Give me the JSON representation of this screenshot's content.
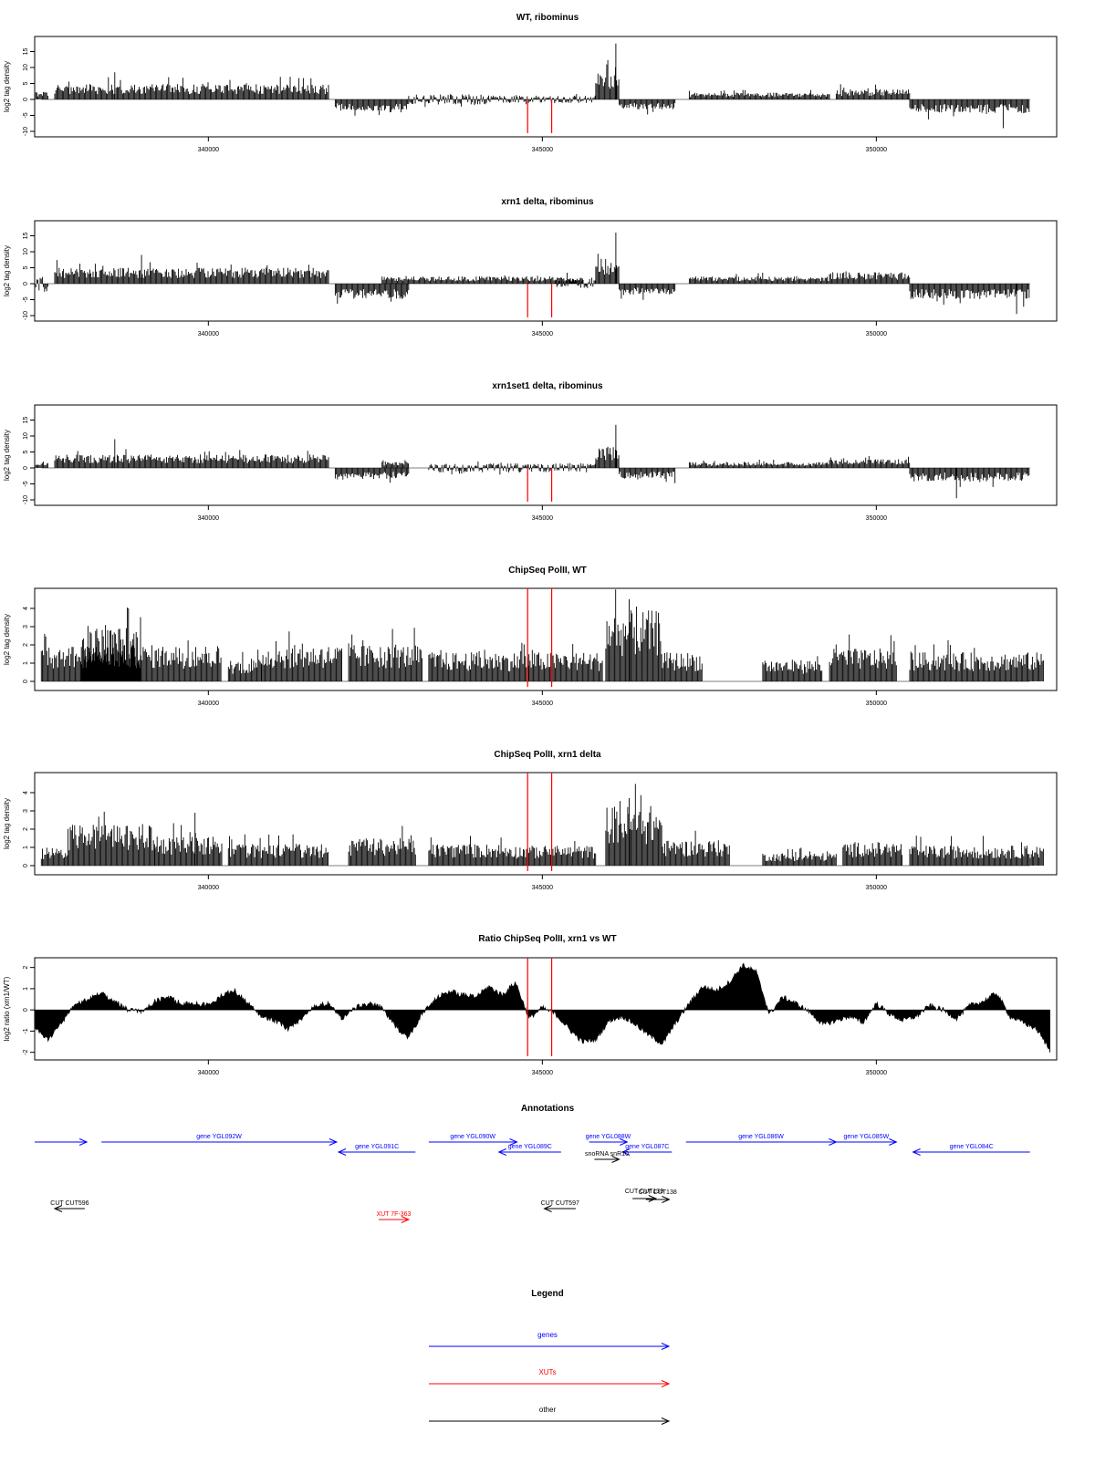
{
  "chart_data": [
    {
      "type": "bar",
      "title": "WT, ribominus",
      "xlabel": "",
      "ylabel": "log2 tag density",
      "xlim": [
        337400,
        352700
      ],
      "ylim": [
        -10,
        18
      ],
      "yticks": [
        -10,
        -5,
        0,
        5,
        10,
        15
      ],
      "xticks": [
        340000,
        345000,
        350000
      ],
      "marker_lines_x": [
        344780,
        345140
      ],
      "segments": [
        {
          "from": 337400,
          "to": 337600,
          "amp": 2.5,
          "sign": 1
        },
        {
          "from": 337700,
          "to": 341800,
          "amp": 4.8,
          "sign": 1
        },
        {
          "from": 341900,
          "to": 343000,
          "amp": 3.6,
          "sign": -1
        },
        {
          "from": 343000,
          "to": 344200,
          "amp": 1.6,
          "sign": 0
        },
        {
          "from": 344200,
          "to": 345800,
          "amp": 1.2,
          "sign": 0
        },
        {
          "from": 345800,
          "to": 346150,
          "amp": 8.5,
          "sign": 1
        },
        {
          "from": 346150,
          "to": 347000,
          "amp": 3.2,
          "sign": -1
        },
        {
          "from": 347200,
          "to": 349300,
          "amp": 2.1,
          "sign": 1
        },
        {
          "from": 349400,
          "to": 350500,
          "amp": 3.2,
          "sign": 1
        },
        {
          "from": 350500,
          "to": 352300,
          "amp": 4.2,
          "sign": -1
        }
      ],
      "peaks": [
        {
          "x": 346100,
          "y": 17.5
        },
        {
          "x": 338600,
          "y": 8.5
        },
        {
          "x": 351900,
          "y": -9
        }
      ]
    },
    {
      "type": "bar",
      "title": "xrn1 delta, ribominus",
      "xlabel": "",
      "ylabel": "log2 tag density",
      "xlim": [
        337400,
        352700
      ],
      "ylim": [
        -10,
        18
      ],
      "yticks": [
        -10,
        -5,
        0,
        5,
        10,
        15
      ],
      "xticks": [
        340000,
        345000,
        350000
      ],
      "marker_lines_x": [
        344780,
        345140
      ],
      "segments": [
        {
          "from": 337400,
          "to": 337600,
          "amp": 2.5,
          "sign": 0
        },
        {
          "from": 337700,
          "to": 341800,
          "amp": 5.0,
          "sign": 1
        },
        {
          "from": 341900,
          "to": 343000,
          "amp": 4.8,
          "sign": -1
        },
        {
          "from": 342600,
          "to": 345600,
          "amp": 2.3,
          "sign": 1
        },
        {
          "from": 345200,
          "to": 345800,
          "amp": 1.4,
          "sign": 0
        },
        {
          "from": 345800,
          "to": 346150,
          "amp": 8.0,
          "sign": 1
        },
        {
          "from": 346150,
          "to": 347000,
          "amp": 3.4,
          "sign": -1
        },
        {
          "from": 347200,
          "to": 349300,
          "amp": 2.3,
          "sign": 1
        },
        {
          "from": 349300,
          "to": 350500,
          "amp": 3.6,
          "sign": 1
        },
        {
          "from": 350500,
          "to": 352300,
          "amp": 4.8,
          "sign": -1
        }
      ],
      "peaks": [
        {
          "x": 346100,
          "y": 16.0
        },
        {
          "x": 339000,
          "y": 9.0
        },
        {
          "x": 352100,
          "y": -9.5
        }
      ]
    },
    {
      "type": "bar",
      "title": "xrn1set1 delta, ribominus",
      "xlabel": "",
      "ylabel": "log2 tag density",
      "xlim": [
        337400,
        352700
      ],
      "ylim": [
        -10,
        18
      ],
      "yticks": [
        -10,
        -5,
        0,
        5,
        10,
        15
      ],
      "xticks": [
        340000,
        345000,
        350000
      ],
      "marker_lines_x": [
        344780,
        345140
      ],
      "segments": [
        {
          "from": 337400,
          "to": 337600,
          "amp": 2.0,
          "sign": 1
        },
        {
          "from": 337700,
          "to": 341800,
          "amp": 4.2,
          "sign": 1
        },
        {
          "from": 341900,
          "to": 343000,
          "amp": 3.5,
          "sign": -1
        },
        {
          "from": 342600,
          "to": 343000,
          "amp": 2.0,
          "sign": 1
        },
        {
          "from": 343300,
          "to": 345800,
          "amp": 1.4,
          "sign": 0
        },
        {
          "from": 345800,
          "to": 346150,
          "amp": 7.0,
          "sign": 1
        },
        {
          "from": 346150,
          "to": 347000,
          "amp": 3.2,
          "sign": -1
        },
        {
          "from": 347200,
          "to": 349300,
          "amp": 1.8,
          "sign": 1
        },
        {
          "from": 349300,
          "to": 350500,
          "amp": 2.8,
          "sign": 1
        },
        {
          "from": 350500,
          "to": 352300,
          "amp": 4.2,
          "sign": -1
        }
      ],
      "peaks": [
        {
          "x": 346100,
          "y": 13.5
        },
        {
          "x": 338600,
          "y": 9.0
        },
        {
          "x": 351200,
          "y": -9.5
        }
      ]
    },
    {
      "type": "bar",
      "title": "ChipSeq PolII, WT",
      "xlabel": "",
      "ylabel": "log2 tag density",
      "xlim": [
        337400,
        352700
      ],
      "ylim": [
        -0.2,
        4.8
      ],
      "yticks": [
        0,
        1,
        2,
        3,
        4
      ],
      "xticks": [
        340000,
        345000,
        350000
      ],
      "marker_lines_x": [
        344780,
        345140
      ],
      "segments": [
        {
          "from": 337500,
          "to": 340200,
          "amp": 2.0,
          "sign": 1
        },
        {
          "from": 338100,
          "to": 339000,
          "amp": 3.0,
          "sign": 1
        },
        {
          "from": 340300,
          "to": 340800,
          "amp": 1.2,
          "sign": 1
        },
        {
          "from": 340800,
          "to": 342000,
          "amp": 2.0,
          "sign": 1
        },
        {
          "from": 342100,
          "to": 343200,
          "amp": 2.0,
          "sign": 1
        },
        {
          "from": 343300,
          "to": 344800,
          "amp": 1.6,
          "sign": 1
        },
        {
          "from": 344800,
          "to": 345900,
          "amp": 1.6,
          "sign": 1
        },
        {
          "from": 345950,
          "to": 346800,
          "amp": 3.9,
          "sign": 1
        },
        {
          "from": 346800,
          "to": 347400,
          "amp": 1.6,
          "sign": 1
        },
        {
          "from": 348300,
          "to": 349200,
          "amp": 1.2,
          "sign": 1
        },
        {
          "from": 349300,
          "to": 350300,
          "amp": 1.8,
          "sign": 1
        },
        {
          "from": 350500,
          "to": 352500,
          "amp": 1.6,
          "sign": 1
        }
      ],
      "peaks": [
        {
          "x": 346300,
          "y": 4.5
        }
      ]
    },
    {
      "type": "bar",
      "title": "ChipSeq PolII, xrn1 delta",
      "xlabel": "",
      "ylabel": "log2 tag density",
      "xlim": [
        337400,
        352700
      ],
      "ylim": [
        -0.2,
        4.8
      ],
      "yticks": [
        0,
        1,
        2,
        3,
        4
      ],
      "xticks": [
        340000,
        345000,
        350000
      ],
      "marker_lines_x": [
        344780,
        345140
      ],
      "segments": [
        {
          "from": 337500,
          "to": 337900,
          "amp": 1.0,
          "sign": 1
        },
        {
          "from": 337900,
          "to": 339200,
          "amp": 2.3,
          "sign": 1
        },
        {
          "from": 339200,
          "to": 340200,
          "amp": 1.6,
          "sign": 1
        },
        {
          "from": 340300,
          "to": 341800,
          "amp": 1.2,
          "sign": 1
        },
        {
          "from": 342100,
          "to": 343100,
          "amp": 1.5,
          "sign": 1
        },
        {
          "from": 343300,
          "to": 344600,
          "amp": 1.2,
          "sign": 1
        },
        {
          "from": 344600,
          "to": 345800,
          "amp": 1.1,
          "sign": 1
        },
        {
          "from": 345950,
          "to": 346800,
          "amp": 3.3,
          "sign": 1
        },
        {
          "from": 346800,
          "to": 347800,
          "amp": 1.4,
          "sign": 1
        },
        {
          "from": 348300,
          "to": 349400,
          "amp": 0.7,
          "sign": 1
        },
        {
          "from": 349500,
          "to": 350400,
          "amp": 1.3,
          "sign": 1
        },
        {
          "from": 350500,
          "to": 352500,
          "amp": 1.1,
          "sign": 1
        }
      ],
      "peaks": [
        {
          "x": 346300,
          "y": 3.7
        },
        {
          "x": 339800,
          "y": 2.9
        }
      ]
    },
    {
      "type": "area",
      "title": "Ratio ChipSeq PolII, xrn1 vs WT",
      "xlabel": "",
      "ylabel": "log2 ratio (xrn1/WT)",
      "xlim": [
        337400,
        352700
      ],
      "ylim": [
        -2.1,
        2.2
      ],
      "yticks": [
        -2,
        -1,
        0,
        1,
        2
      ],
      "xticks": [
        340000,
        345000,
        350000
      ],
      "marker_lines_x": [
        344780,
        345140
      ],
      "x": [
        337400,
        337600,
        337800,
        338000,
        338200,
        338400,
        338600,
        338800,
        339000,
        339200,
        339400,
        339600,
        339800,
        340000,
        340200,
        340400,
        340600,
        340800,
        341000,
        341200,
        341400,
        341600,
        341800,
        342000,
        342200,
        342400,
        342600,
        342800,
        343000,
        343200,
        343400,
        343600,
        343800,
        344000,
        344200,
        344400,
        344600,
        344800,
        345000,
        345200,
        345400,
        345600,
        345800,
        346000,
        346200,
        346400,
        346600,
        346800,
        347000,
        347200,
        347400,
        347600,
        347800,
        348000,
        348200,
        348400,
        348600,
        348800,
        349000,
        349200,
        349400,
        349600,
        349800,
        350000,
        350200,
        350400,
        350600,
        350800,
        351000,
        351200,
        351400,
        351600,
        351800,
        352000,
        352200,
        352400,
        352600
      ],
      "values": [
        -0.9,
        -1.4,
        -0.6,
        0.2,
        0.5,
        0.8,
        0.4,
        0.0,
        -0.1,
        0.4,
        0.6,
        0.3,
        0.3,
        0.2,
        0.7,
        0.9,
        0.3,
        -0.3,
        -0.5,
        -0.9,
        -0.4,
        0.2,
        0.3,
        -0.4,
        0.1,
        0.3,
        0.1,
        -0.8,
        -1.3,
        -0.2,
        0.5,
        0.9,
        0.7,
        0.6,
        1.1,
        0.7,
        1.3,
        -0.4,
        0.1,
        -0.2,
        -0.9,
        -1.5,
        -1.4,
        -0.5,
        -0.3,
        -0.7,
        -1.2,
        -1.6,
        -0.6,
        0.3,
        1.1,
        0.9,
        1.3,
        2.1,
        1.8,
        -0.2,
        0.6,
        0.3,
        -0.1,
        -0.7,
        -0.5,
        -0.3,
        -0.6,
        0.3,
        -0.2,
        -0.5,
        -0.3,
        0.2,
        0.0,
        -0.4,
        0.2,
        0.4,
        0.8,
        -0.3,
        -0.6,
        -0.9,
        -1.9
      ]
    }
  ],
  "annotations": {
    "title": "Annotations",
    "features": [
      {
        "label": "",
        "type": "gene",
        "strand": "+",
        "start": 337400,
        "end": 338180
      },
      {
        "label": "gene YGL092W",
        "type": "gene",
        "strand": "+",
        "start": 338400,
        "end": 341920
      },
      {
        "label": "gene YGL091C",
        "type": "gene",
        "strand": "-",
        "start": 341950,
        "end": 343100
      },
      {
        "label": "gene YGL090W",
        "type": "gene",
        "strand": "+",
        "start": 343300,
        "end": 344620
      },
      {
        "label": "gene YGL089C",
        "type": "gene",
        "strand": "-",
        "start": 344350,
        "end": 345280
      },
      {
        "label": "gene YGL088W",
        "type": "gene",
        "strand": "+",
        "start": 345700,
        "end": 346270
      },
      {
        "label": "gene YGL087C",
        "type": "gene",
        "strand": "-",
        "start": 346200,
        "end": 346940
      },
      {
        "label": "gene YGL086W",
        "type": "gene",
        "strand": "+",
        "start": 347150,
        "end": 349400
      },
      {
        "label": "gene YGL085W",
        "type": "gene",
        "strand": "+",
        "start": 349400,
        "end": 350300
      },
      {
        "label": "gene YGL084C",
        "type": "gene",
        "strand": "-",
        "start": 350550,
        "end": 352300
      },
      {
        "label": "snoRNA snR10",
        "type": "other",
        "strand": "+",
        "start": 345780,
        "end": 346150
      },
      {
        "label": "CUT CUT596",
        "type": "other",
        "strand": "-",
        "start": 337700,
        "end": 338150
      },
      {
        "label": "CUT CUT597",
        "type": "other",
        "strand": "-",
        "start": 345030,
        "end": 345500
      },
      {
        "label": "CUT CUT139",
        "type": "other",
        "strand": "+",
        "start": 346350,
        "end": 346700
      },
      {
        "label": "CUT CUT138",
        "type": "other",
        "strand": "+",
        "start": 346550,
        "end": 346900
      },
      {
        "label": "XUT 7F-363",
        "type": "xut",
        "strand": "+",
        "start": 342550,
        "end": 343000
      }
    ]
  },
  "legend": {
    "title": "Legend",
    "items": [
      {
        "label": "genes",
        "color": "#0000ff"
      },
      {
        "label": "XUTs",
        "color": "#ff0000"
      },
      {
        "label": "other",
        "color": "#000000"
      }
    ]
  },
  "colors": {
    "gene": "#0000ff",
    "xut": "#ff0000",
    "other": "#000000",
    "marker": "#ff0000",
    "data": "#000000"
  }
}
